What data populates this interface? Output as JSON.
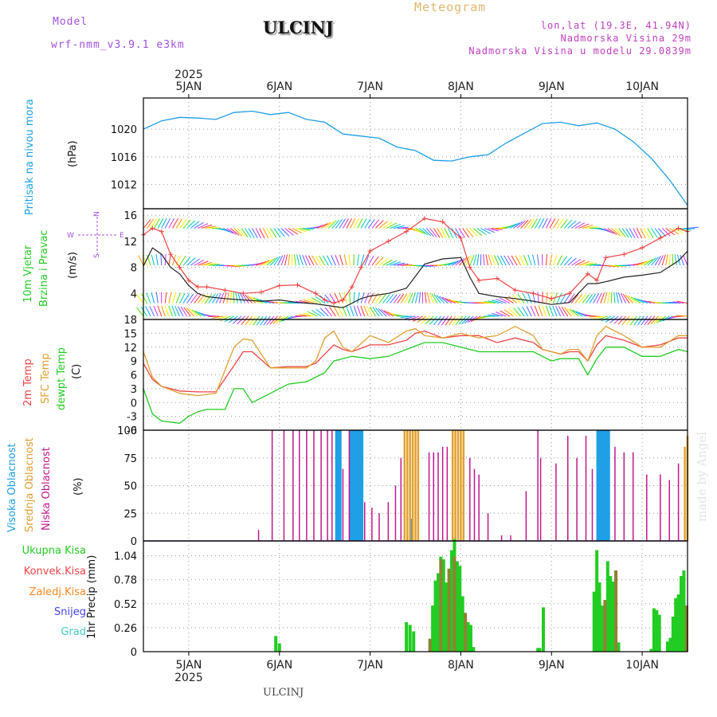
{
  "header": {
    "model_label": "Model",
    "model_name": "wrf-nmm_v3.9.1  e3km",
    "location": "ULCINJ",
    "chart_kind": "Meteogram",
    "lonlat": "lon,lat (19.3E, 41.94N)",
    "altitude": "Nadmorska Visina 29m",
    "model_altitude": "Nadmorska Visina u modelu 29.0839m"
  },
  "footer": {
    "location": "ULCINJ",
    "credit": "made by Angel"
  },
  "colors": {
    "pressure": "#1e9fe6",
    "wind_speed": "#222222",
    "gust": "#ee4444",
    "temp2m": "#ee4444",
    "sfc": "#e0a030",
    "dewpt": "#22cc22",
    "high_cloud": "#1e9fe6",
    "mid_cloud": "#e0a030",
    "low_cloud": "#c0188e",
    "total_precip": "#22cc22",
    "conv_precip": "#ee4444"
  },
  "chart_data": [
    {
      "type": "line",
      "title": "Pritisak na nivou mora",
      "ylabel": "(hPa)",
      "x_labels": [
        "5JAN",
        "6JAN",
        "7JAN",
        "8JAN",
        "9JAN",
        "10JAN"
      ],
      "year_label": "2025",
      "x_range_days": [
        4.5,
        10.5
      ],
      "ylim": [
        1008.5,
        1024.5
      ],
      "yticks": [
        1012,
        1016,
        1020
      ],
      "x": [
        4.5,
        4.7,
        4.9,
        5.1,
        5.3,
        5.5,
        5.7,
        5.9,
        6.1,
        6.3,
        6.5,
        6.7,
        6.9,
        7.1,
        7.3,
        7.5,
        7.7,
        7.9,
        8.1,
        8.3,
        8.5,
        8.7,
        8.9,
        9.1,
        9.3,
        9.5,
        9.7,
        9.9,
        10.1,
        10.3,
        10.5
      ],
      "values": [
        1020.0,
        1021.2,
        1021.7,
        1021.6,
        1021.4,
        1022.4,
        1022.6,
        1022.1,
        1022.4,
        1021.4,
        1021.0,
        1019.3,
        1019.0,
        1018.7,
        1017.4,
        1016.9,
        1015.5,
        1015.4,
        1016.0,
        1016.3,
        1018.0,
        1019.4,
        1020.8,
        1021.0,
        1020.5,
        1020.9,
        1020.0,
        1018.2,
        1015.8,
        1012.7,
        1009.0
      ]
    },
    {
      "type": "line",
      "title": "10m Vjetar Brzina i Pravac",
      "ylabel": "(m/s)",
      "ylim": [
        0,
        17
      ],
      "yticks": [
        4,
        8,
        12,
        16
      ],
      "compass_labels": [
        "W",
        "E",
        "N",
        "S"
      ],
      "series": [
        {
          "name": "wind speed",
          "x": [
            4.5,
            4.6,
            4.7,
            4.8,
            4.9,
            5.0,
            5.1,
            5.2,
            5.4,
            5.6,
            5.8,
            6.0,
            6.2,
            6.4,
            6.5,
            6.6,
            6.7,
            6.8,
            6.9,
            7.0,
            7.2,
            7.4,
            7.6,
            7.8,
            8.0,
            8.1,
            8.2,
            8.4,
            8.6,
            8.8,
            9.0,
            9.2,
            9.4,
            9.5,
            9.6,
            9.8,
            10.0,
            10.2,
            10.4,
            10.5
          ],
          "values": [
            8.2,
            11.0,
            10.0,
            8.0,
            7.0,
            5.2,
            4.0,
            3.5,
            3.2,
            3.0,
            2.8,
            3.0,
            2.6,
            2.4,
            2.2,
            2.0,
            1.8,
            2.5,
            3.2,
            3.6,
            4.0,
            4.8,
            8.5,
            9.3,
            9.5,
            6.5,
            4.0,
            3.5,
            3.2,
            2.8,
            2.3,
            2.6,
            5.5,
            5.5,
            5.8,
            6.5,
            6.8,
            7.2,
            9.0,
            10.5
          ]
        },
        {
          "name": "gust",
          "x": [
            4.5,
            4.6,
            4.7,
            4.8,
            4.9,
            5.0,
            5.1,
            5.2,
            5.4,
            5.6,
            5.8,
            6.0,
            6.2,
            6.4,
            6.5,
            6.6,
            6.7,
            6.8,
            6.9,
            7.0,
            7.2,
            7.4,
            7.6,
            7.8,
            8.0,
            8.1,
            8.2,
            8.4,
            8.6,
            8.8,
            9.0,
            9.2,
            9.4,
            9.5,
            9.6,
            9.8,
            10.0,
            10.2,
            10.4,
            10.5
          ],
          "values": [
            13.0,
            14.0,
            13.5,
            10.0,
            8.0,
            6.0,
            5.0,
            5.0,
            4.5,
            4.0,
            4.2,
            5.2,
            5.3,
            4.0,
            3.0,
            2.5,
            3.0,
            5.0,
            8.0,
            10.5,
            12.0,
            13.5,
            15.5,
            15.0,
            12.5,
            8.0,
            6.0,
            6.3,
            4.5,
            4.0,
            3.2,
            4.0,
            7.0,
            6.0,
            9.5,
            10.0,
            11.0,
            12.5,
            14.0,
            13.5
          ]
        }
      ]
    },
    {
      "type": "line",
      "title": "2m Temp / SFC Temp / dewpt Temp",
      "legend": [
        "2m Temp",
        "SFC Temp",
        "dewpt Temp"
      ],
      "ylabel": "(C)",
      "ylim": [
        -6,
        18
      ],
      "yticks": [
        -6,
        -3,
        0,
        3,
        6,
        9,
        12,
        15,
        18
      ],
      "series": [
        {
          "name": "2m Temp",
          "x": [
            4.5,
            4.6,
            4.7,
            4.9,
            5.1,
            5.3,
            5.5,
            5.6,
            5.7,
            5.9,
            6.1,
            6.3,
            6.4,
            6.5,
            6.6,
            6.7,
            6.8,
            7.0,
            7.2,
            7.4,
            7.5,
            7.6,
            7.8,
            8.0,
            8.2,
            8.4,
            8.6,
            8.8,
            8.9,
            9.0,
            9.1,
            9.2,
            9.3,
            9.4,
            9.5,
            9.6,
            9.8,
            10.0,
            10.2,
            10.4,
            10.5
          ],
          "values": [
            8.5,
            5.0,
            3.5,
            2.5,
            2.3,
            2.3,
            8.0,
            11.0,
            11.0,
            7.5,
            7.8,
            7.8,
            8.5,
            10.5,
            12.5,
            11.5,
            11.0,
            12.5,
            12.5,
            13.5,
            15.0,
            15.5,
            14.0,
            14.5,
            14.5,
            13.0,
            14.0,
            13.0,
            11.5,
            11.0,
            10.5,
            11.0,
            11.0,
            9.0,
            12.5,
            14.5,
            13.5,
            12.0,
            12.5,
            14.0,
            14.0
          ]
        },
        {
          "name": "SFC Temp",
          "x": [
            4.5,
            4.6,
            4.7,
            4.9,
            5.1,
            5.3,
            5.5,
            5.6,
            5.7,
            5.9,
            6.1,
            6.3,
            6.4,
            6.5,
            6.6,
            6.7,
            6.8,
            7.0,
            7.2,
            7.4,
            7.5,
            7.6,
            7.8,
            8.0,
            8.2,
            8.4,
            8.6,
            8.8,
            8.9,
            9.0,
            9.1,
            9.2,
            9.3,
            9.4,
            9.5,
            9.6,
            9.8,
            10.0,
            10.2,
            10.4,
            10.5
          ],
          "values": [
            11.0,
            5.5,
            3.5,
            2.0,
            1.5,
            2.0,
            12.0,
            13.8,
            13.5,
            7.5,
            7.5,
            7.5,
            9.0,
            14.0,
            15.5,
            12.0,
            11.0,
            14.5,
            13.0,
            15.5,
            16.0,
            14.5,
            14.0,
            15.0,
            14.0,
            14.5,
            16.5,
            14.5,
            11.5,
            11.0,
            10.5,
            11.5,
            11.5,
            9.0,
            14.5,
            16.5,
            14.5,
            12.0,
            12.0,
            14.5,
            14.5
          ]
        },
        {
          "name": "dewpt Temp",
          "x": [
            4.5,
            4.6,
            4.7,
            4.9,
            5.0,
            5.1,
            5.2,
            5.3,
            5.4,
            5.5,
            5.6,
            5.7,
            5.9,
            6.1,
            6.3,
            6.5,
            6.6,
            6.8,
            7.0,
            7.2,
            7.4,
            7.6,
            7.8,
            8.0,
            8.2,
            8.4,
            8.6,
            8.8,
            8.9,
            9.0,
            9.1,
            9.3,
            9.4,
            9.5,
            9.6,
            9.8,
            10.0,
            10.2,
            10.4,
            10.5
          ],
          "values": [
            3.0,
            -2.5,
            -4.0,
            -4.5,
            -3.0,
            -2.0,
            -1.5,
            -1.5,
            -1.5,
            3.0,
            3.0,
            0.0,
            2.0,
            4.0,
            4.5,
            6.5,
            9.0,
            10.0,
            9.5,
            10.0,
            11.5,
            13.0,
            13.0,
            12.0,
            11.0,
            11.0,
            11.0,
            11.0,
            10.0,
            9.0,
            9.5,
            9.5,
            6.0,
            9.5,
            12.0,
            12.0,
            10.0,
            10.0,
            11.5,
            11.0
          ]
        }
      ]
    },
    {
      "type": "bar",
      "title": "Visoka / Srednja / Niska Oblacnost",
      "legend": [
        "Visoka Oblacnost",
        "Srednja Oblacnost",
        "Niska Oblacnost"
      ],
      "ylabel": "(%)",
      "ylim": [
        0,
        100
      ],
      "yticks": [
        0,
        25,
        50,
        75,
        100
      ],
      "series": [
        {
          "name": "Visoka Oblacnost",
          "x": [
            6.63,
            6.65,
            6.67,
            6.79,
            6.81,
            6.83,
            6.85,
            6.87,
            6.89,
            6.91,
            7.45,
            9.51,
            9.53,
            9.55,
            9.57,
            9.59,
            9.61,
            9.63
          ],
          "values": [
            100,
            100,
            100,
            100,
            100,
            100,
            100,
            100,
            100,
            100,
            20,
            100,
            100,
            100,
            100,
            100,
            100,
            100
          ]
        },
        {
          "name": "Srednja Oblacnost",
          "x": [
            7.38,
            7.41,
            7.44,
            7.47,
            7.5,
            7.53,
            7.91,
            7.94,
            7.97,
            8.0,
            8.03,
            10.47,
            10.5
          ],
          "values": [
            100,
            100,
            100,
            100,
            100,
            100,
            100,
            100,
            100,
            100,
            100,
            85,
            95
          ]
        },
        {
          "name": "Niska Oblacnost",
          "x": [
            5.77,
            5.92,
            6.05,
            6.15,
            6.22,
            6.3,
            6.38,
            6.46,
            6.53,
            6.58,
            6.7,
            6.77,
            6.94,
            7.02,
            7.1,
            7.2,
            7.28,
            7.34,
            7.65,
            7.7,
            7.75,
            7.8,
            7.85,
            8.1,
            8.15,
            8.2,
            8.3,
            8.45,
            8.55,
            8.72,
            8.85,
            8.88,
            9.05,
            9.18,
            9.28,
            9.38,
            9.45,
            9.7,
            9.8,
            9.9,
            10.05,
            10.2,
            10.3,
            10.4
          ],
          "values": [
            10,
            100,
            100,
            100,
            100,
            100,
            100,
            100,
            100,
            100,
            65,
            100,
            35,
            30,
            25,
            35,
            50,
            75,
            80,
            80,
            80,
            85,
            85,
            75,
            65,
            60,
            25,
            5,
            5,
            45,
            100,
            75,
            70,
            95,
            75,
            95,
            65,
            85,
            80,
            80,
            60,
            60,
            55,
            70
          ]
        }
      ]
    },
    {
      "type": "bar",
      "title": "1hr Precip",
      "legend": [
        "Ukupna Kisa",
        "Konvek.Kisa",
        "Zaledj.Kisa",
        "Snijeg",
        "Grad"
      ],
      "ylabel": "1hr Precip (mm)",
      "ylim": [
        0,
        1.2
      ],
      "yticks": [
        0,
        0.26,
        0.52,
        0.78,
        1.04
      ],
      "series": [
        {
          "name": "Ukupna Kisa",
          "x": [
            5.96,
            6.0,
            7.4,
            7.44,
            7.48,
            7.66,
            7.69,
            7.72,
            7.75,
            7.78,
            7.81,
            7.84,
            7.87,
            7.9,
            7.93,
            7.96,
            7.99,
            8.02,
            8.05,
            8.08,
            8.11,
            8.14,
            8.17,
            8.2,
            8.85,
            8.87,
            8.91,
            9.47,
            9.5,
            9.53,
            9.56,
            9.59,
            9.62,
            9.65,
            9.68,
            9.71,
            9.74,
            10.1,
            10.13,
            10.16,
            10.19,
            10.28,
            10.31,
            10.34,
            10.37,
            10.4,
            10.43,
            10.46,
            10.49
          ],
          "values": [
            0.17,
            0.09,
            0.32,
            0.29,
            0.22,
            0.14,
            0.5,
            0.77,
            0.85,
            1.03,
            1.0,
            0.75,
            0.9,
            1.1,
            1.22,
            0.98,
            0.93,
            0.6,
            0.42,
            0.32,
            0.29,
            0.05,
            0.0,
            0.0,
            0.04,
            0.04,
            0.48,
            0.65,
            1.1,
            0.75,
            0.5,
            0.56,
            0.98,
            0.82,
            0.76,
            0.88,
            0.1,
            0.03,
            0.47,
            0.45,
            0.4,
            0.11,
            0.15,
            0.38,
            0.58,
            0.62,
            0.82,
            0.88,
            0.5
          ]
        },
        {
          "name": "Konvek.Kisa",
          "x": [
            7.66,
            7.78,
            7.87,
            7.93,
            8.05,
            9.59,
            9.71,
            10.49
          ],
          "values": [
            0.14,
            1.0,
            0.9,
            1.03,
            0.42,
            0.56,
            0.88,
            0.5
          ]
        }
      ]
    }
  ]
}
